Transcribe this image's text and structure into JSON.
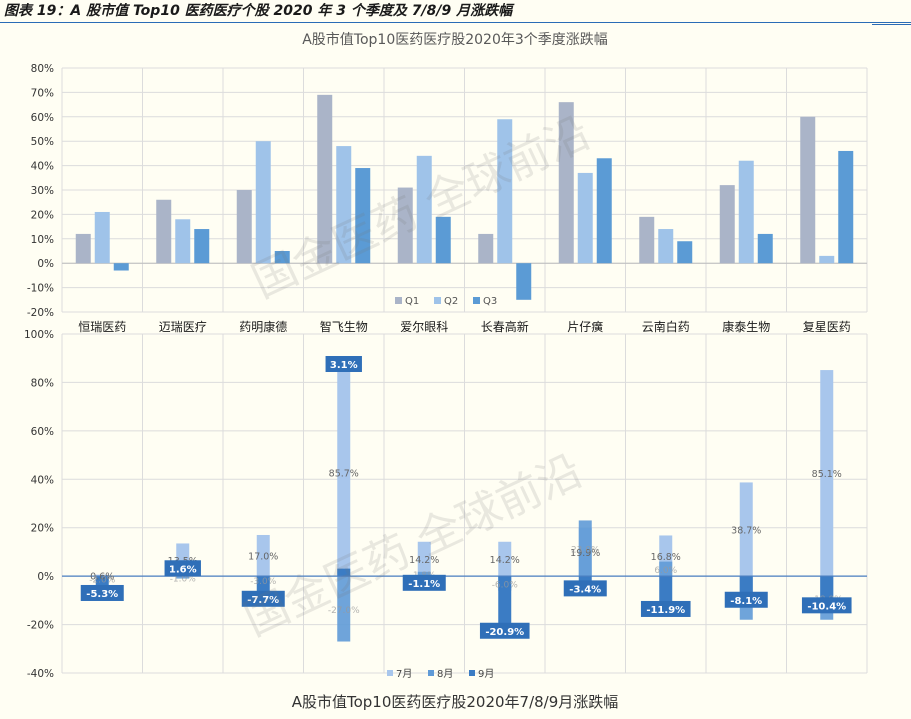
{
  "figure_title": "图表 19：A 股市值 Top10 医药医疗个股 2020 年 3 个季度及 7/8/9 月涨跌幅",
  "watermark": "国金医药 全球前沿",
  "colors": {
    "s1": "#aab4c8",
    "s2": "#9fc3e9",
    "s3": "#5b9bd5",
    "m1": "#a8c6ec",
    "m2": "#5f9ad7",
    "m3": "#3b7cc4",
    "label_box": "#2f6fb8",
    "grid": "#dcdcdc",
    "axis": "#4a7fc1"
  },
  "chart_data": [
    {
      "type": "bar",
      "title": "A股市值Top10医药医疗股2020年3个季度涨跌幅",
      "categories": [
        "恒瑞医药",
        "迈瑞医疗",
        "药明康德",
        "智飞生物",
        "爱尔眼科",
        "长春高新",
        "片仔癀",
        "云南白药",
        "康泰生物",
        "复星医药"
      ],
      "series": [
        {
          "name": "Q1",
          "values": [
            12,
            26,
            30,
            69,
            31,
            12,
            66,
            19,
            32,
            60
          ]
        },
        {
          "name": "Q2",
          "values": [
            21,
            18,
            50,
            48,
            44,
            59,
            37,
            14,
            42,
            3
          ]
        },
        {
          "name": "Q3",
          "values": [
            -3,
            14,
            5,
            39,
            19,
            -15,
            43,
            9,
            12,
            46
          ]
        }
      ],
      "ylim": [
        -20,
        80
      ],
      "yticks": [
        "-20%",
        "-10%",
        "0%",
        "10%",
        "20%",
        "30%",
        "40%",
        "50%",
        "60%",
        "70%",
        "80%"
      ],
      "legend_position": "bottom-center",
      "grid": true
    },
    {
      "type": "bar",
      "title": "A股市值Top10医药医疗股2020年7/8/9月涨跌幅",
      "categories": [
        "恒瑞医药",
        "迈瑞医疗",
        "药明康德",
        "智飞生物",
        "爱尔眼科",
        "长春高新",
        "片仔癀",
        "云南白药",
        "康泰生物",
        "复星医药"
      ],
      "series": [
        {
          "name": "7月",
          "values": [
            0.6,
            13.5,
            17.0,
            85.7,
            14.2,
            14.2,
            19.9,
            16.8,
            38.7,
            85.1
          ]
        },
        {
          "name": "8月",
          "values": [
            -2.0,
            -1.0,
            -3.0,
            -27.0,
            1.8,
            -6.0,
            23.0,
            6.0,
            -18.0,
            -18.0
          ]
        },
        {
          "name": "9月",
          "values": [
            -5.3,
            1.6,
            -7.7,
            3.1,
            -1.1,
            -20.9,
            -3.4,
            -11.9,
            -8.1,
            -10.4
          ]
        }
      ],
      "value_labels_7": [
        "0.6%",
        "13.5%",
        "17.0%",
        "85.7%",
        "14.2%",
        "14.2%",
        "19.9%",
        "16.8%",
        "38.7%",
        "85.1%"
      ],
      "value_labels_8": [
        "-2.0%",
        "-1.0%",
        "-3.0%",
        "-27.0%",
        "1.8%",
        "-6.0%",
        "23.0%",
        "6.0%",
        "-18.0%",
        "-18.0%"
      ],
      "value_labels_9": [
        "-5.3%",
        "1.6%",
        "-7.7%",
        "3.1%",
        "-1.1%",
        "-20.9%",
        "-3.4%",
        "-11.9%",
        "-8.1%",
        "-10.4%"
      ],
      "ylim": [
        -40,
        100
      ],
      "yticks": [
        "-40%",
        "-20%",
        "0%",
        "20%",
        "40%",
        "60%",
        "80%",
        "100%"
      ],
      "legend_position": "bottom-center",
      "grid": true
    }
  ]
}
